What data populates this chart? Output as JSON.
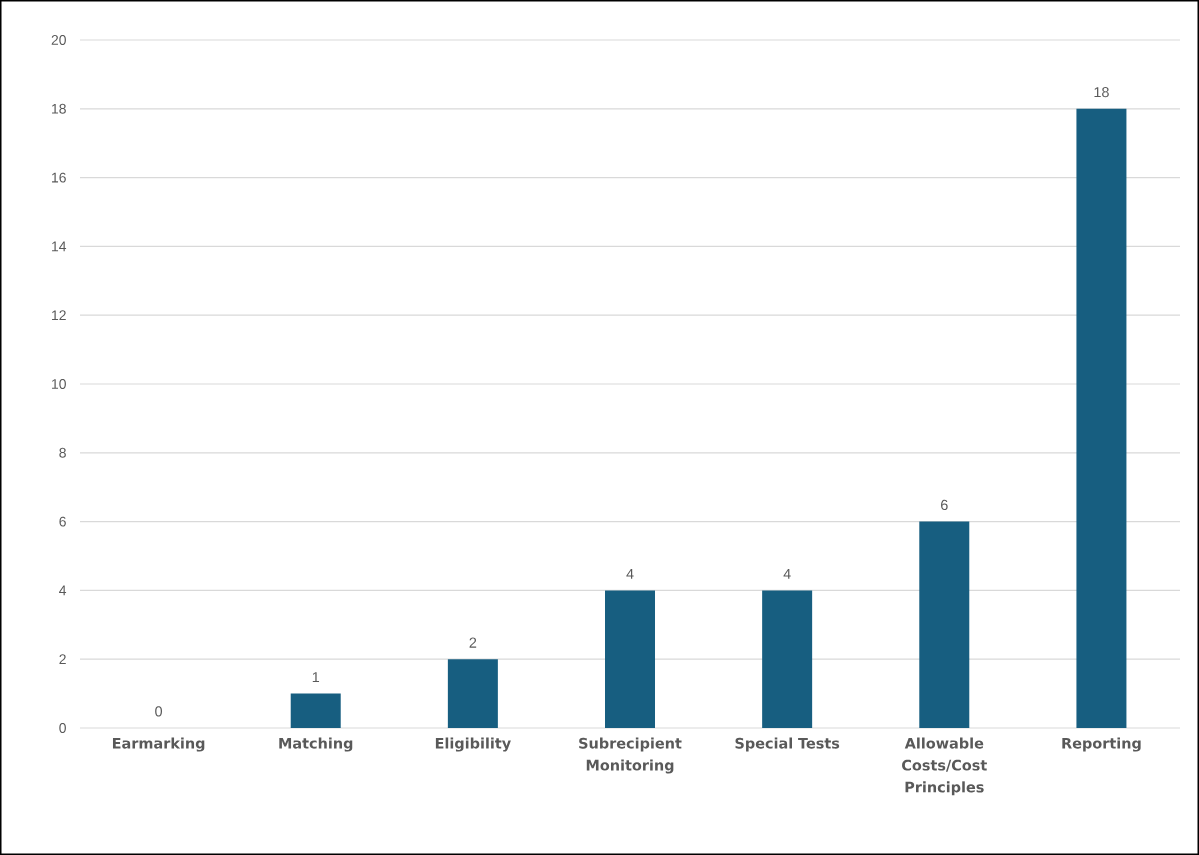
{
  "chart_data": {
    "type": "bar",
    "categories": [
      "Earmarking",
      "Matching",
      "Eligibility",
      "Subrecipient Monitoring",
      "Special Tests",
      "Allowable Costs/Cost Principles",
      "Reporting"
    ],
    "values": [
      0,
      1,
      2,
      4,
      4,
      6,
      18
    ],
    "color": "#175e80",
    "ylim": [
      0,
      20
    ],
    "yticks": [
      0,
      2,
      4,
      6,
      8,
      10,
      12,
      14,
      16,
      18,
      20
    ],
    "grid": "y",
    "data_labels": true
  }
}
